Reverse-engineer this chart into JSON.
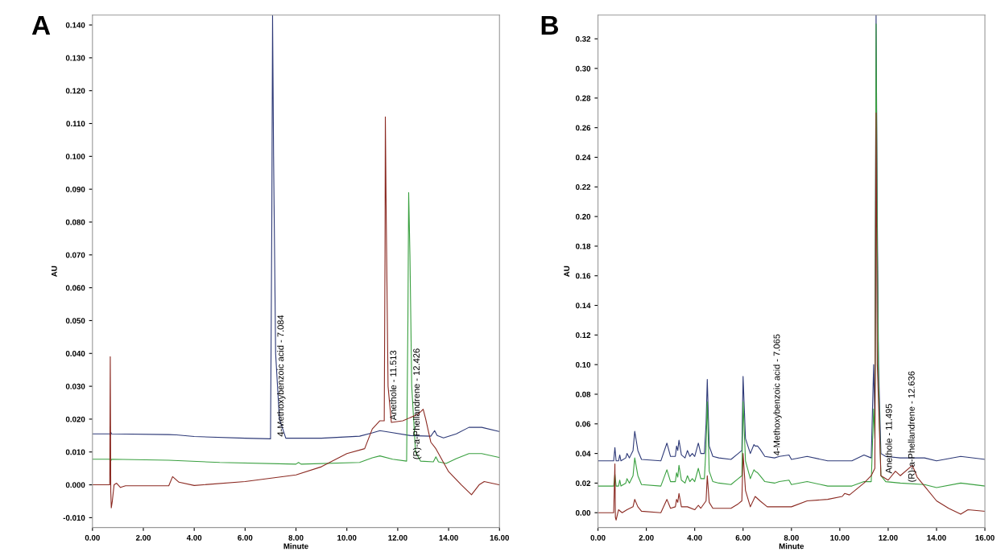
{
  "chart_data": [
    {
      "type": "line",
      "title": "A",
      "xlabel": "Minute",
      "ylabel": "AU",
      "xlim": [
        0,
        16
      ],
      "ylim": [
        -0.013,
        0.143
      ],
      "xticks": [
        {
          "value": 0,
          "label": "0.00"
        },
        {
          "value": 2,
          "label": "2.00"
        },
        {
          "value": 4,
          "label": "4.00"
        },
        {
          "value": 6,
          "label": "6.00"
        },
        {
          "value": 8,
          "label": "8.00"
        },
        {
          "value": 10,
          "label": "10.00"
        },
        {
          "value": 12,
          "label": "12.00"
        },
        {
          "value": 14,
          "label": "14.00"
        },
        {
          "value": 16,
          "label": "16.00"
        }
      ],
      "yticks": [
        {
          "value": -0.01,
          "label": "-0.010"
        },
        {
          "value": 0,
          "label": "0.000"
        },
        {
          "value": 0.01,
          "label": "0.010"
        },
        {
          "value": 0.02,
          "label": "0.020"
        },
        {
          "value": 0.03,
          "label": "0.030"
        },
        {
          "value": 0.04,
          "label": "0.040"
        },
        {
          "value": 0.05,
          "label": "0.050"
        },
        {
          "value": 0.06,
          "label": "0.060"
        },
        {
          "value": 0.07,
          "label": "0.070"
        },
        {
          "value": 0.08,
          "label": "0.080"
        },
        {
          "value": 0.09,
          "label": "0.090"
        },
        {
          "value": 0.1,
          "label": "0.100"
        },
        {
          "value": 0.11,
          "label": "0.110"
        },
        {
          "value": 0.12,
          "label": "0.120"
        },
        {
          "value": 0.13,
          "label": "0.130"
        },
        {
          "value": 0.14,
          "label": "0.140"
        }
      ],
      "grid": false,
      "legend": false,
      "marker": "none",
      "line_style": "solid",
      "series": [
        {
          "color": "#2e3a78",
          "x": [
            0,
            0.68,
            0.7,
            0.72,
            0.75,
            3.0,
            3.3,
            4.0,
            6.0,
            7.0,
            7.05,
            7.08,
            7.12,
            7.2,
            7.35,
            7.6,
            9.0,
            10.5,
            11.0,
            11.3,
            11.7,
            12.5,
            13.3,
            13.45,
            13.55,
            13.8,
            14.3,
            14.8,
            15.3,
            16.0
          ],
          "values": [
            0.0155,
            0.0155,
            0.015,
            0.016,
            0.0155,
            0.0153,
            0.0152,
            0.0147,
            0.0142,
            0.014,
            0.08,
            0.143,
            0.1,
            0.04,
            0.02,
            0.0142,
            0.0142,
            0.0148,
            0.0158,
            0.0165,
            0.016,
            0.015,
            0.0148,
            0.0165,
            0.015,
            0.0143,
            0.0155,
            0.0175,
            0.0175,
            0.0162
          ]
        },
        {
          "color": "#3aa040",
          "x": [
            0,
            0.68,
            0.7,
            0.75,
            3.0,
            5.0,
            8.0,
            8.1,
            8.2,
            10.5,
            11.0,
            11.3,
            11.8,
            12.35,
            12.4,
            12.43,
            12.48,
            12.55,
            12.7,
            12.9,
            13.4,
            13.5,
            13.6,
            13.9,
            14.3,
            14.8,
            15.3,
            16.0
          ],
          "values": [
            0.0078,
            0.0078,
            0.007,
            0.0078,
            0.0075,
            0.0068,
            0.0063,
            0.0068,
            0.0063,
            0.0068,
            0.0082,
            0.0088,
            0.0078,
            0.0072,
            0.05,
            0.089,
            0.07,
            0.03,
            0.01,
            0.0072,
            0.007,
            0.0085,
            0.007,
            0.0065,
            0.008,
            0.0095,
            0.0095,
            0.0083
          ]
        },
        {
          "color": "#8b2a22",
          "x": [
            0,
            0.68,
            0.7,
            0.72,
            0.74,
            0.78,
            0.85,
            0.95,
            1.1,
            1.3,
            3.0,
            3.15,
            3.4,
            4.0,
            6.0,
            8.0,
            9.0,
            10.0,
            10.7,
            11.0,
            11.3,
            11.47,
            11.5,
            11.513,
            11.55,
            11.62,
            11.75,
            12.2,
            12.8,
            13.0,
            13.1,
            13.3,
            13.5,
            14.0,
            14.5,
            14.9,
            15.2,
            15.4,
            16.0
          ],
          "values": [
            0.0,
            0.0,
            0.039,
            -0.002,
            -0.007,
            -0.005,
            0.0,
            0.0005,
            -0.0008,
            -0.0003,
            -0.0003,
            0.0025,
            0.0008,
            -0.0002,
            0.001,
            0.003,
            0.0055,
            0.0095,
            0.011,
            0.017,
            0.0195,
            0.0195,
            0.07,
            0.112,
            0.08,
            0.03,
            0.019,
            0.0195,
            0.0215,
            0.023,
            0.02,
            0.013,
            0.011,
            0.004,
            0.0,
            -0.003,
            0.0,
            0.001,
            0.0
          ]
        }
      ],
      "annotations": [
        {
          "text": "4-Methoxybenzoic acid - 7.084",
          "x": 7.084,
          "y": 0.014
        },
        {
          "text": "Anethole - 11.513",
          "x": 11.513,
          "y": 0.019
        },
        {
          "text": "(R)-a-Phellandrene - 12.426",
          "x": 12.426,
          "y": 0.007
        }
      ]
    },
    {
      "type": "line",
      "title": "B",
      "xlabel": "Minute",
      "ylabel": "AU",
      "xlim": [
        0,
        16
      ],
      "ylim": [
        -0.01,
        0.336
      ],
      "xticks": [
        {
          "value": 0,
          "label": "0.00"
        },
        {
          "value": 2,
          "label": "2.00"
        },
        {
          "value": 4,
          "label": "4.00"
        },
        {
          "value": 6,
          "label": "6.00"
        },
        {
          "value": 8,
          "label": "8.00"
        },
        {
          "value": 10,
          "label": "10.00"
        },
        {
          "value": 12,
          "label": "12.00"
        },
        {
          "value": 14,
          "label": "14.00"
        },
        {
          "value": 16,
          "label": "16.00"
        }
      ],
      "yticks": [
        {
          "value": 0,
          "label": "0.00"
        },
        {
          "value": 0.02,
          "label": "0.02"
        },
        {
          "value": 0.04,
          "label": "0.04"
        },
        {
          "value": 0.06,
          "label": "0.06"
        },
        {
          "value": 0.08,
          "label": "0.08"
        },
        {
          "value": 0.1,
          "label": "0.10"
        },
        {
          "value": 0.12,
          "label": "0.12"
        },
        {
          "value": 0.14,
          "label": "0.14"
        },
        {
          "value": 0.16,
          "label": "0.16"
        },
        {
          "value": 0.18,
          "label": "0.18"
        },
        {
          "value": 0.2,
          "label": "0.20"
        },
        {
          "value": 0.22,
          "label": "0.22"
        },
        {
          "value": 0.24,
          "label": "0.24"
        },
        {
          "value": 0.26,
          "label": "0.26"
        },
        {
          "value": 0.28,
          "label": "0.28"
        },
        {
          "value": 0.3,
          "label": "0.30"
        },
        {
          "value": 0.32,
          "label": "0.32"
        }
      ],
      "grid": false,
      "legend": false,
      "marker": "none",
      "line_style": "solid",
      "series": [
        {
          "color": "#2e3a78",
          "x": [
            0,
            0.65,
            0.7,
            0.75,
            0.85,
            0.9,
            0.95,
            1.15,
            1.2,
            1.3,
            1.45,
            1.52,
            1.65,
            1.8,
            2.6,
            2.85,
            3.0,
            3.2,
            3.25,
            3.3,
            3.35,
            3.45,
            3.6,
            3.7,
            3.8,
            3.9,
            4.0,
            4.15,
            4.25,
            4.4,
            4.47,
            4.52,
            4.6,
            4.75,
            5.0,
            5.5,
            5.8,
            5.95,
            6.0,
            6.1,
            6.3,
            6.45,
            6.5,
            6.6,
            6.7,
            6.9,
            7.3,
            7.5,
            7.9,
            8.0,
            8.65,
            9.5,
            10.5,
            11.0,
            11.3,
            11.4,
            11.45,
            11.5,
            11.55,
            11.6,
            11.7,
            11.9,
            12.5,
            13.5,
            14.0,
            15.0,
            16.0
          ],
          "values": [
            0.035,
            0.035,
            0.044,
            0.035,
            0.035,
            0.039,
            0.035,
            0.037,
            0.04,
            0.037,
            0.042,
            0.055,
            0.042,
            0.036,
            0.035,
            0.047,
            0.038,
            0.038,
            0.045,
            0.042,
            0.049,
            0.039,
            0.037,
            0.042,
            0.038,
            0.04,
            0.038,
            0.047,
            0.04,
            0.04,
            0.06,
            0.09,
            0.045,
            0.038,
            0.037,
            0.036,
            0.04,
            0.042,
            0.092,
            0.05,
            0.04,
            0.046,
            0.045,
            0.045,
            0.043,
            0.038,
            0.037,
            0.038,
            0.039,
            0.036,
            0.038,
            0.035,
            0.035,
            0.039,
            0.037,
            0.1,
            0.06,
            0.336,
            0.2,
            0.1,
            0.04,
            0.038,
            0.037,
            0.037,
            0.035,
            0.038,
            0.036
          ]
        },
        {
          "color": "#3aa040",
          "x": [
            0,
            0.65,
            0.7,
            0.75,
            0.85,
            0.9,
            0.95,
            1.15,
            1.2,
            1.3,
            1.45,
            1.52,
            1.65,
            1.8,
            2.6,
            2.85,
            3.0,
            3.2,
            3.25,
            3.3,
            3.35,
            3.45,
            3.6,
            3.7,
            3.8,
            3.9,
            4.0,
            4.15,
            4.25,
            4.4,
            4.47,
            4.52,
            4.6,
            4.75,
            5.0,
            5.5,
            5.8,
            5.95,
            6.0,
            6.1,
            6.3,
            6.45,
            6.5,
            6.6,
            6.7,
            6.9,
            7.3,
            7.5,
            7.9,
            8.0,
            8.65,
            9.5,
            10.5,
            11.0,
            11.3,
            11.4,
            11.45,
            11.5,
            11.55,
            11.6,
            11.7,
            11.9,
            12.5,
            13.5,
            14.0,
            15.0,
            16.0
          ],
          "values": [
            0.018,
            0.018,
            0.026,
            0.018,
            0.018,
            0.022,
            0.018,
            0.02,
            0.023,
            0.02,
            0.025,
            0.037,
            0.025,
            0.019,
            0.018,
            0.029,
            0.021,
            0.021,
            0.027,
            0.024,
            0.032,
            0.022,
            0.02,
            0.025,
            0.021,
            0.023,
            0.021,
            0.03,
            0.023,
            0.023,
            0.045,
            0.075,
            0.028,
            0.021,
            0.02,
            0.019,
            0.023,
            0.025,
            0.075,
            0.035,
            0.023,
            0.029,
            0.028,
            0.027,
            0.025,
            0.021,
            0.02,
            0.021,
            0.022,
            0.019,
            0.021,
            0.018,
            0.018,
            0.021,
            0.021,
            0.07,
            0.05,
            0.33,
            0.18,
            0.09,
            0.025,
            0.021,
            0.02,
            0.019,
            0.017,
            0.02,
            0.018
          ]
        },
        {
          "color": "#8b2a22",
          "x": [
            0,
            0.65,
            0.7,
            0.72,
            0.75,
            0.85,
            1.0,
            1.2,
            1.45,
            1.52,
            1.65,
            1.8,
            2.6,
            2.85,
            3.0,
            3.2,
            3.25,
            3.3,
            3.35,
            3.45,
            3.7,
            4.0,
            4.15,
            4.25,
            4.47,
            4.52,
            4.6,
            4.75,
            5.5,
            5.8,
            5.95,
            6.0,
            6.1,
            6.3,
            6.5,
            6.7,
            7.0,
            8.0,
            8.65,
            9.5,
            10.1,
            10.2,
            10.4,
            11.0,
            11.3,
            11.45,
            11.5,
            11.55,
            11.7,
            12.0,
            12.3,
            12.5,
            13.0,
            13.2,
            13.5,
            14.0,
            14.5,
            15.0,
            15.3,
            16.0
          ],
          "values": [
            0.0,
            0.0,
            0.033,
            -0.003,
            -0.005,
            0.002,
            0.0,
            0.002,
            0.004,
            0.009,
            0.004,
            0.001,
            0.0,
            0.009,
            0.003,
            0.004,
            0.009,
            0.007,
            0.013,
            0.004,
            0.004,
            0.002,
            0.005,
            0.003,
            0.008,
            0.025,
            0.007,
            0.003,
            0.003,
            0.006,
            0.008,
            0.04,
            0.015,
            0.004,
            0.011,
            0.008,
            0.004,
            0.004,
            0.008,
            0.009,
            0.011,
            0.013,
            0.012,
            0.02,
            0.025,
            0.03,
            0.27,
            0.1,
            0.025,
            0.022,
            0.028,
            0.025,
            0.032,
            0.024,
            0.018,
            0.008,
            0.003,
            -0.001,
            0.002,
            0.001
          ]
        }
      ],
      "annotations": [
        {
          "text": "4-Methoxybenzoic acid - 7.065",
          "x": 7.065,
          "y": 0.037
        },
        {
          "text": "Anethole - 11.495",
          "x": 11.7,
          "y": 0.025
        },
        {
          "text": "(R)-a-Phellandrene - 12.636",
          "x": 12.636,
          "y": 0.019
        }
      ]
    }
  ]
}
